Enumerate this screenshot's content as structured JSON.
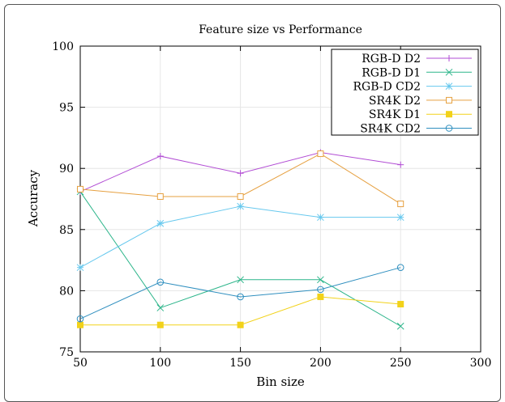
{
  "chart_data": {
    "type": "line",
    "title": "Feature size vs Performance",
    "xlabel": "Bin size",
    "ylabel": "Accuracy",
    "xlim": [
      50,
      300
    ],
    "ylim": [
      75,
      100
    ],
    "xticks": [
      50,
      100,
      150,
      200,
      250,
      300
    ],
    "yticks": [
      75,
      80,
      85,
      90,
      95,
      100
    ],
    "grid": true,
    "legend_position": "top-right",
    "x": [
      50,
      100,
      150,
      200,
      250
    ],
    "series": [
      {
        "name": "RGB-D D2",
        "values": [
          88.1,
          91.0,
          89.6,
          91.3,
          90.3
        ],
        "color": "#b24dd4",
        "marker": "plus"
      },
      {
        "name": "RGB-D D1",
        "values": [
          88.1,
          78.6,
          80.9,
          80.9,
          77.1
        ],
        "color": "#2cb58a",
        "marker": "x"
      },
      {
        "name": "RGB-D CD2",
        "values": [
          81.9,
          85.5,
          86.9,
          86.0,
          86.0
        ],
        "color": "#66c8ee",
        "marker": "star"
      },
      {
        "name": "SR4K D2",
        "values": [
          88.3,
          87.7,
          87.7,
          91.2,
          87.1
        ],
        "color": "#e6a040",
        "marker": "square-open"
      },
      {
        "name": "SR4K D1",
        "values": [
          77.2,
          77.2,
          77.2,
          79.5,
          78.9
        ],
        "color": "#f2d21a",
        "marker": "square-filled"
      },
      {
        "name": "SR4K CD2",
        "values": [
          77.7,
          80.7,
          79.5,
          80.1,
          81.9
        ],
        "color": "#2f8fbf",
        "marker": "circle-open"
      }
    ]
  }
}
